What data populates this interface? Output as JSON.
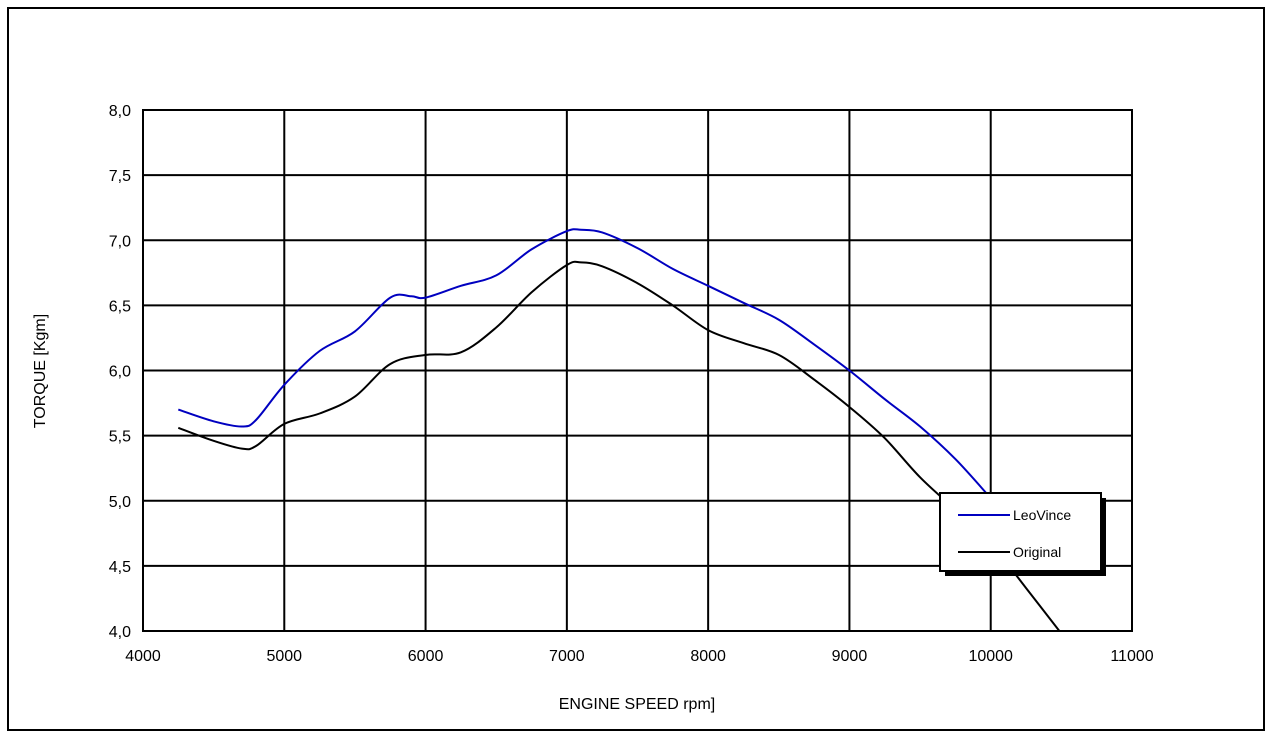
{
  "chart_data": {
    "type": "line",
    "title": "",
    "xlabel": "ENGINE SPEED rpm]",
    "ylabel": "TORQUE [Kgm]",
    "xlim": [
      4000,
      11000
    ],
    "ylim": [
      4.0,
      8.0
    ],
    "x_ticks": [
      4000,
      5000,
      6000,
      7000,
      8000,
      9000,
      10000,
      11000
    ],
    "x_tick_labels": [
      "4000",
      "5000",
      "6000",
      "7000",
      "8000",
      "9000",
      "10000",
      "11000"
    ],
    "y_ticks": [
      4.0,
      4.5,
      5.0,
      5.5,
      6.0,
      6.5,
      7.0,
      7.5,
      8.0
    ],
    "y_tick_labels": [
      "4,0",
      "4,5",
      "5,0",
      "5,5",
      "6,0",
      "6,5",
      "7,0",
      "7,5",
      "8,0"
    ],
    "grid": true,
    "legend_position": "bottom-right",
    "series": [
      {
        "name": "LeoVince",
        "color": "#0000c0",
        "x": [
          4250,
          4500,
          4700,
          4800,
          5000,
          5250,
          5500,
          5750,
          5900,
          6000,
          6250,
          6500,
          6750,
          7000,
          7100,
          7250,
          7500,
          7750,
          8000,
          8250,
          8500,
          8750,
          9000,
          9250,
          9500,
          9750,
          10000
        ],
        "y": [
          5.7,
          5.61,
          5.57,
          5.62,
          5.89,
          6.15,
          6.3,
          6.56,
          6.57,
          6.56,
          6.65,
          6.73,
          6.93,
          7.07,
          7.08,
          7.06,
          6.94,
          6.78,
          6.65,
          6.52,
          6.39,
          6.2,
          6.0,
          5.78,
          5.57,
          5.32,
          5.02
        ]
      },
      {
        "name": "Original",
        "color": "#000000",
        "x": [
          4250,
          4500,
          4700,
          4800,
          5000,
          5250,
          5500,
          5750,
          6000,
          6250,
          6500,
          6750,
          7000,
          7100,
          7250,
          7500,
          7750,
          8000,
          8250,
          8500,
          8750,
          9000,
          9250,
          9500,
          9750,
          10000,
          10250,
          10500
        ],
        "y": [
          5.56,
          5.46,
          5.4,
          5.42,
          5.59,
          5.67,
          5.8,
          6.05,
          6.12,
          6.14,
          6.33,
          6.6,
          6.81,
          6.83,
          6.8,
          6.67,
          6.5,
          6.31,
          6.21,
          6.12,
          5.93,
          5.72,
          5.48,
          5.18,
          4.93,
          4.67,
          4.33,
          3.98
        ]
      }
    ]
  }
}
